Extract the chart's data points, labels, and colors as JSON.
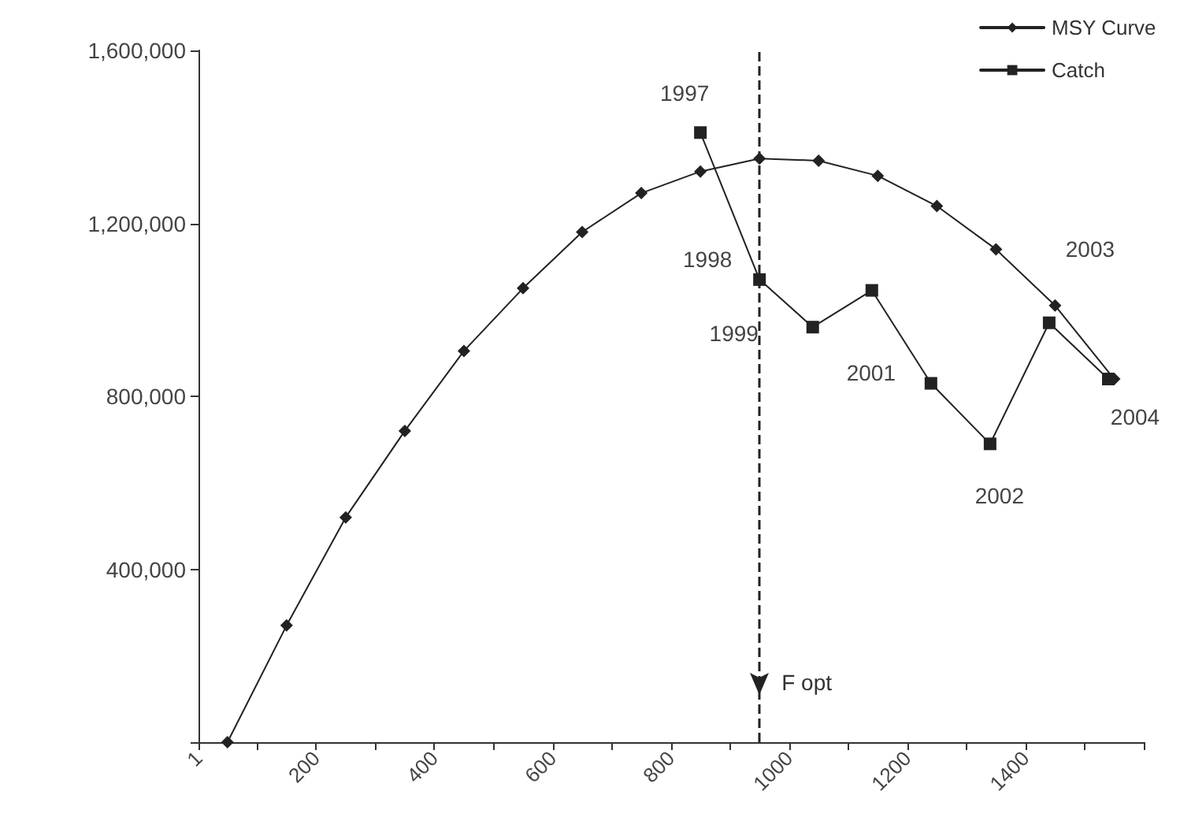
{
  "chart_data": {
    "type": "line",
    "xlim": [
      1,
      1600
    ],
    "xticks": [
      1,
      {
        "value": 100,
        "label": null
      },
      200,
      {
        "value": 300,
        "label": null
      },
      400,
      {
        "value": 500,
        "label": null
      },
      600,
      {
        "value": 700,
        "label": null
      },
      800,
      {
        "value": 900,
        "label": null
      },
      1000,
      {
        "value": 1100,
        "label": null
      },
      1200,
      {
        "value": 1300,
        "label": null
      },
      1400,
      {
        "value": 1500,
        "label": null
      },
      {
        "value": 1600,
        "label": null
      }
    ],
    "ylim": [
      0,
      1600000
    ],
    "yticks": [
      {
        "value": 0,
        "label": null
      },
      {
        "value": 400000,
        "label": "400,000"
      },
      {
        "value": 800000,
        "label": "800,000"
      },
      {
        "value": 1200000,
        "label": "1,200,000"
      },
      {
        "value": 1600000,
        "label": "1,600,000"
      }
    ],
    "series": [
      {
        "name": "MSY Curve",
        "color": "#222222",
        "marker": "diamond",
        "x": [
          50,
          150,
          250,
          350,
          450,
          550,
          650,
          750,
          850,
          950,
          1050,
          1150,
          1250,
          1350,
          1450,
          1550
        ],
        "values": [
          0,
          270000,
          520000,
          720000,
          905000,
          1050000,
          1180000,
          1270000,
          1320000,
          1350000,
          1345000,
          1310000,
          1240000,
          1140000,
          1010000,
          840000
        ]
      },
      {
        "name": "Catch",
        "color": "#222222",
        "marker": "square",
        "x": [
          850,
          950,
          1040,
          1140,
          1240,
          1340,
          1440,
          1540
        ],
        "values": [
          1410000,
          1070000,
          960000,
          1045000,
          830000,
          690000,
          970000,
          840000
        ]
      }
    ],
    "annotations": [
      {
        "text": "1997",
        "x": 850,
        "y": 1410000
      },
      {
        "text": "1998",
        "x": 950,
        "y": 1070000
      },
      {
        "text": "1999",
        "x": 1040,
        "y": 960000
      },
      {
        "text": "2001",
        "x": 1240,
        "y": 830000
      },
      {
        "text": "2002",
        "x": 1340,
        "y": 690000
      },
      {
        "text": "2003",
        "x": 1440,
        "y": 970000
      },
      {
        "text": "2004",
        "x": 1540,
        "y": 840000
      }
    ],
    "ref_lines": [
      {
        "axis": "x",
        "value": 950,
        "label": "F opt",
        "line_style": "dashed",
        "color": "#222222"
      }
    ],
    "grid": false,
    "legend": "top right",
    "line_style": "solid"
  }
}
